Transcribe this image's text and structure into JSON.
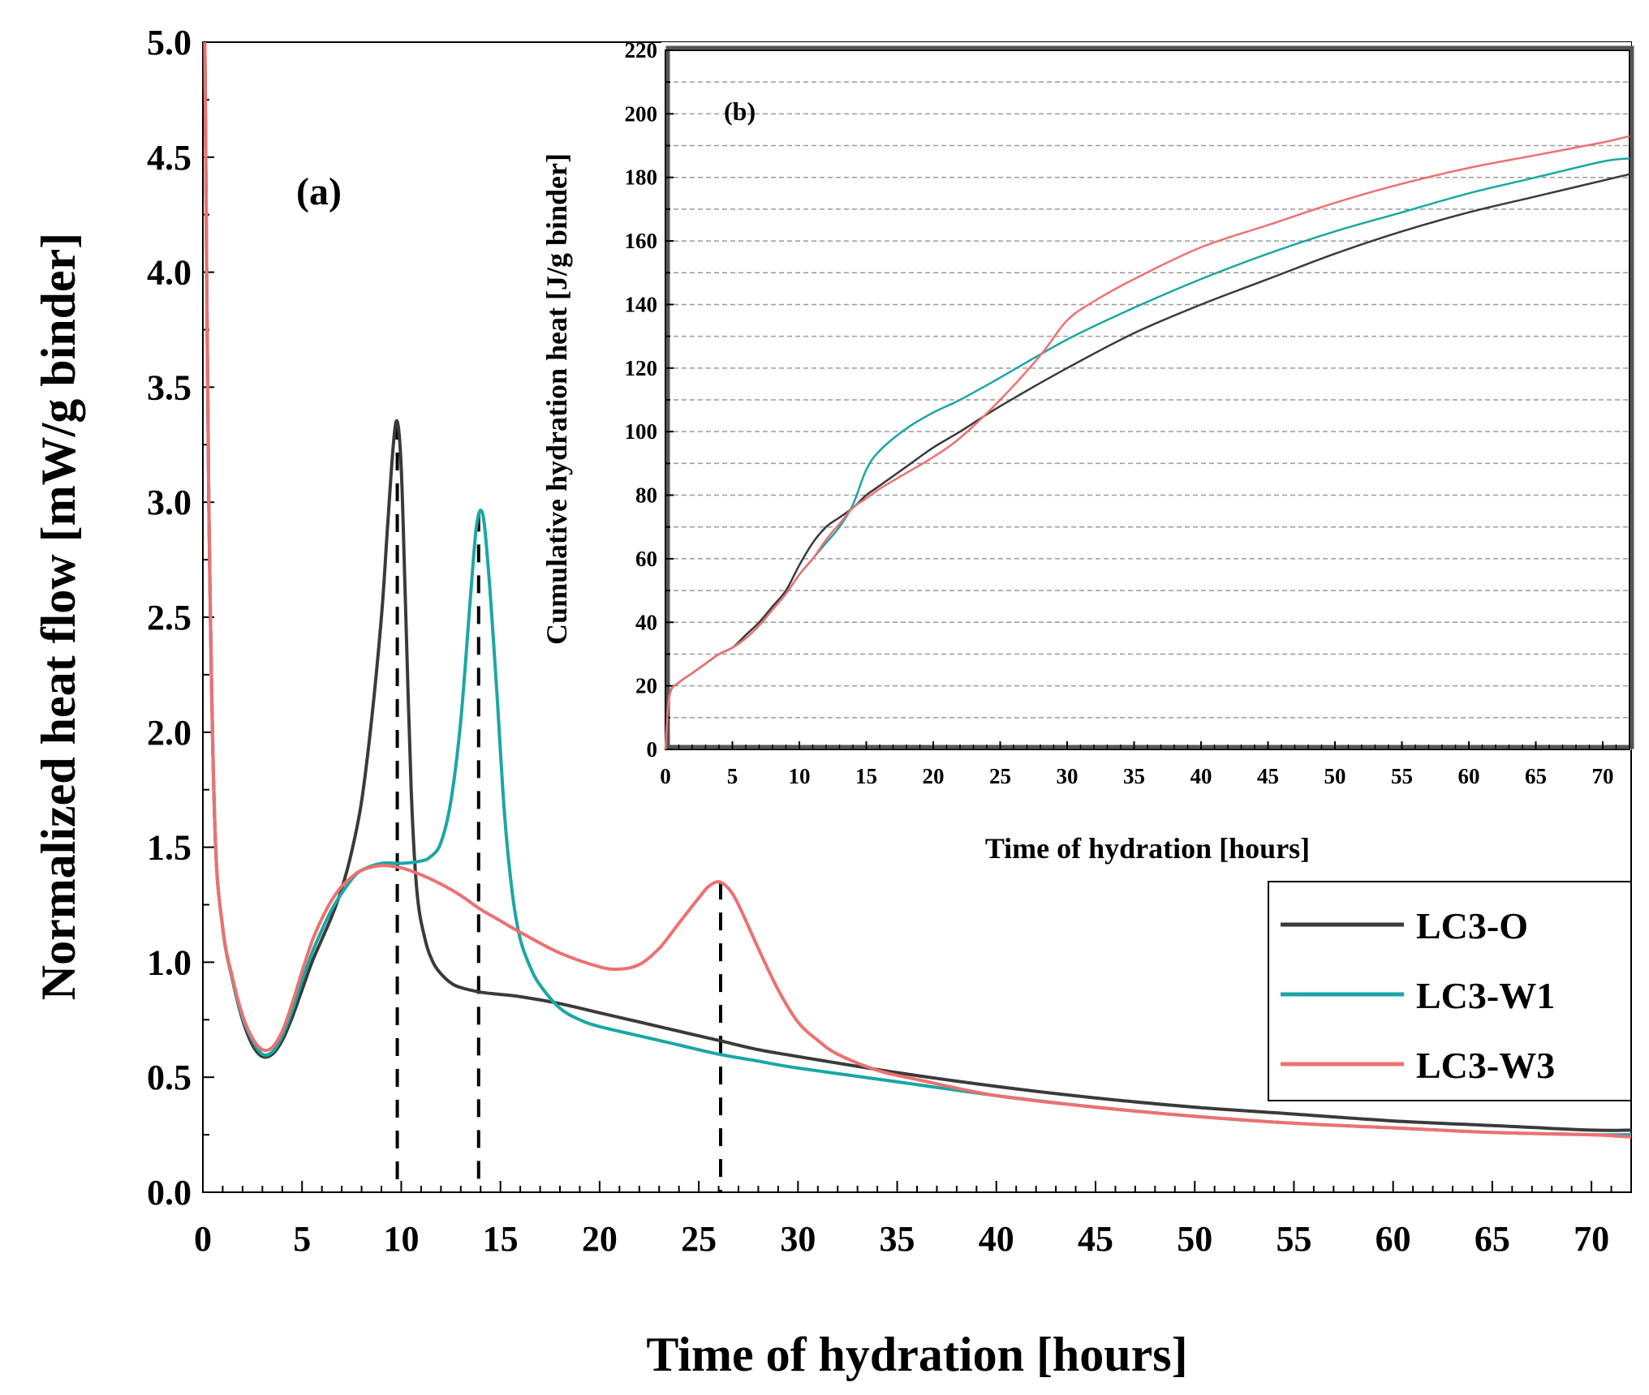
{
  "chart_data": [
    {
      "id": "main",
      "type": "line",
      "panel_label": "(a)",
      "title": "",
      "xlabel": "Time of hydration [hours]",
      "ylabel": "Normalized heat flow [mW/g binder]",
      "xlim": [
        0,
        72
      ],
      "ylim": [
        0,
        5
      ],
      "xticks": [
        "0",
        "5",
        "10",
        "15",
        "20",
        "25",
        "30",
        "35",
        "40",
        "45",
        "50",
        "55",
        "60",
        "65",
        "70"
      ],
      "yticks": [
        "0.0",
        "0.5",
        "1.0",
        "1.5",
        "2.0",
        "2.5",
        "3.0",
        "3.5",
        "4.0",
        "4.5",
        "5.0"
      ],
      "legend_position": "right-middle",
      "series": [
        {
          "name": "LC3-O",
          "color": "#3a3a3a",
          "x": [
            0.1,
            0.3,
            0.6,
            1.0,
            1.5,
            2.0,
            2.5,
            3.0,
            3.5,
            4.0,
            4.5,
            5.0,
            5.5,
            6.0,
            6.5,
            7.0,
            7.5,
            8.0,
            8.5,
            9.0,
            9.3,
            9.6,
            9.8,
            10.0,
            10.2,
            10.5,
            10.8,
            11.2,
            11.6,
            12.0,
            12.5,
            13.0,
            14.0,
            15.0,
            16.0,
            18.0,
            20.0,
            22.0,
            24.0,
            26.0,
            28.0,
            30.0,
            35.0,
            40.0,
            45.0,
            50.0,
            55.0,
            60.0,
            65.0,
            70.0,
            72.0
          ],
          "y": [
            5.0,
            3.0,
            1.6,
            1.15,
            0.92,
            0.75,
            0.64,
            0.59,
            0.6,
            0.66,
            0.76,
            0.88,
            1.0,
            1.1,
            1.2,
            1.32,
            1.48,
            1.7,
            2.05,
            2.5,
            2.88,
            3.25,
            3.35,
            3.15,
            2.6,
            1.75,
            1.3,
            1.1,
            1.0,
            0.95,
            0.91,
            0.89,
            0.87,
            0.86,
            0.85,
            0.82,
            0.78,
            0.74,
            0.7,
            0.66,
            0.62,
            0.59,
            0.52,
            0.46,
            0.41,
            0.37,
            0.34,
            0.31,
            0.29,
            0.27,
            0.27
          ]
        },
        {
          "name": "LC3-W1",
          "color": "#1aa6a6",
          "x": [
            0.1,
            0.3,
            0.6,
            1.0,
            1.5,
            2.0,
            2.5,
            3.0,
            3.5,
            4.0,
            4.5,
            5.0,
            5.5,
            6.0,
            6.5,
            7.0,
            7.5,
            8.0,
            9.0,
            10.0,
            11.0,
            11.5,
            12.0,
            12.5,
            13.0,
            13.5,
            13.8,
            14.1,
            14.4,
            14.8,
            15.2,
            15.6,
            16.0,
            16.5,
            17.0,
            18.0,
            19.0,
            20.0,
            22.0,
            24.0,
            26.0,
            28.0,
            30.0,
            35.0,
            40.0,
            45.0,
            50.0,
            55.0,
            60.0,
            65.0,
            70.0,
            72.0
          ],
          "y": [
            5.0,
            3.0,
            1.6,
            1.15,
            0.92,
            0.76,
            0.66,
            0.6,
            0.61,
            0.68,
            0.79,
            0.92,
            1.04,
            1.14,
            1.23,
            1.3,
            1.36,
            1.4,
            1.43,
            1.43,
            1.44,
            1.46,
            1.52,
            1.7,
            2.05,
            2.6,
            2.9,
            2.95,
            2.7,
            2.2,
            1.65,
            1.3,
            1.1,
            0.98,
            0.9,
            0.8,
            0.75,
            0.72,
            0.68,
            0.64,
            0.6,
            0.57,
            0.54,
            0.48,
            0.42,
            0.37,
            0.33,
            0.3,
            0.28,
            0.26,
            0.25,
            0.25
          ]
        },
        {
          "name": "LC3-W3",
          "color": "#ee7070",
          "x": [
            0.1,
            0.3,
            0.6,
            1.0,
            1.5,
            2.0,
            2.5,
            3.0,
            3.5,
            4.0,
            4.5,
            5.0,
            5.5,
            6.0,
            6.5,
            7.0,
            7.5,
            8.0,
            9.0,
            10.0,
            11.0,
            12.0,
            13.0,
            14.0,
            15.0,
            16.0,
            18.0,
            20.0,
            21.0,
            22.0,
            23.0,
            24.0,
            25.0,
            25.5,
            26.0,
            26.5,
            27.0,
            28.0,
            29.0,
            30.0,
            31.0,
            32.0,
            34.0,
            36.0,
            40.0,
            45.0,
            50.0,
            55.0,
            60.0,
            65.0,
            70.0,
            72.0
          ],
          "y": [
            5.0,
            3.0,
            1.6,
            1.15,
            0.93,
            0.77,
            0.67,
            0.62,
            0.63,
            0.7,
            0.82,
            0.96,
            1.09,
            1.19,
            1.27,
            1.33,
            1.37,
            1.4,
            1.42,
            1.41,
            1.38,
            1.34,
            1.29,
            1.23,
            1.18,
            1.13,
            1.04,
            0.98,
            0.97,
            0.99,
            1.06,
            1.17,
            1.28,
            1.33,
            1.35,
            1.32,
            1.25,
            1.06,
            0.88,
            0.74,
            0.66,
            0.6,
            0.53,
            0.49,
            0.42,
            0.37,
            0.33,
            0.3,
            0.28,
            0.26,
            0.25,
            0.24
          ]
        }
      ],
      "peak_markers_x": [
        9.8,
        13.9,
        26.1
      ],
      "peak_markers_y": [
        3.35,
        2.95,
        1.35
      ]
    },
    {
      "id": "inset",
      "type": "line",
      "panel_label": "(b)",
      "title": "",
      "xlabel": "Time of hydration [hours]",
      "ylabel": "Cumulative hydration heat [J/g binder]",
      "xlim": [
        0,
        72
      ],
      "ylim": [
        0,
        220
      ],
      "xticks": [
        "0",
        "5",
        "10",
        "15",
        "20",
        "25",
        "30",
        "35",
        "40",
        "45",
        "50",
        "55",
        "60",
        "65",
        "70"
      ],
      "yticks": [
        "0",
        "20",
        "40",
        "60",
        "80",
        "100",
        "120",
        "140",
        "160",
        "180",
        "200",
        "220"
      ],
      "grid": "horizontal dashed",
      "series": [
        {
          "name": "LC3-O",
          "color": "#3a3a3a",
          "x": [
            0,
            0.3,
            1,
            2,
            3,
            4,
            5,
            6,
            7,
            8,
            9,
            10,
            11,
            12,
            13,
            14,
            15,
            16,
            18,
            20,
            22,
            25,
            30,
            35,
            40,
            45,
            50,
            55,
            60,
            65,
            70,
            72
          ],
          "y": [
            0,
            17,
            21,
            24,
            27,
            30,
            32,
            36,
            40,
            45,
            50,
            58,
            65,
            70,
            73,
            76,
            80,
            83,
            89,
            95,
            100,
            108,
            120,
            131,
            140,
            148,
            156,
            163,
            169,
            174,
            179,
            181
          ]
        },
        {
          "name": "LC3-W1",
          "color": "#1aa6a6",
          "x": [
            0,
            0.3,
            1,
            2,
            3,
            4,
            5,
            6,
            7,
            8,
            9,
            10,
            11,
            12,
            13,
            14,
            15,
            16,
            18,
            20,
            22,
            25,
            30,
            35,
            40,
            45,
            50,
            55,
            60,
            65,
            70,
            72
          ],
          "y": [
            0,
            17,
            21,
            24,
            27,
            30,
            32,
            35,
            39,
            44,
            49,
            55,
            60,
            65,
            70,
            77,
            88,
            94,
            101,
            106,
            110,
            117,
            129,
            139,
            148,
            156,
            163,
            169,
            175,
            180,
            185,
            186
          ]
        },
        {
          "name": "LC3-W3",
          "color": "#ee7070",
          "x": [
            0,
            0.3,
            1,
            2,
            3,
            4,
            5,
            6,
            7,
            8,
            9,
            10,
            11,
            12,
            13,
            14,
            15,
            16,
            18,
            20,
            22,
            25,
            28,
            30,
            32,
            35,
            40,
            45,
            50,
            55,
            60,
            65,
            70,
            72
          ],
          "y": [
            0,
            17,
            21,
            24,
            27,
            30,
            32,
            35,
            39,
            44,
            49,
            55,
            60,
            66,
            71,
            76,
            79,
            82,
            87,
            92,
            98,
            110,
            124,
            135,
            141,
            148,
            158,
            165,
            172,
            178,
            183,
            187,
            191,
            193
          ]
        }
      ]
    }
  ]
}
